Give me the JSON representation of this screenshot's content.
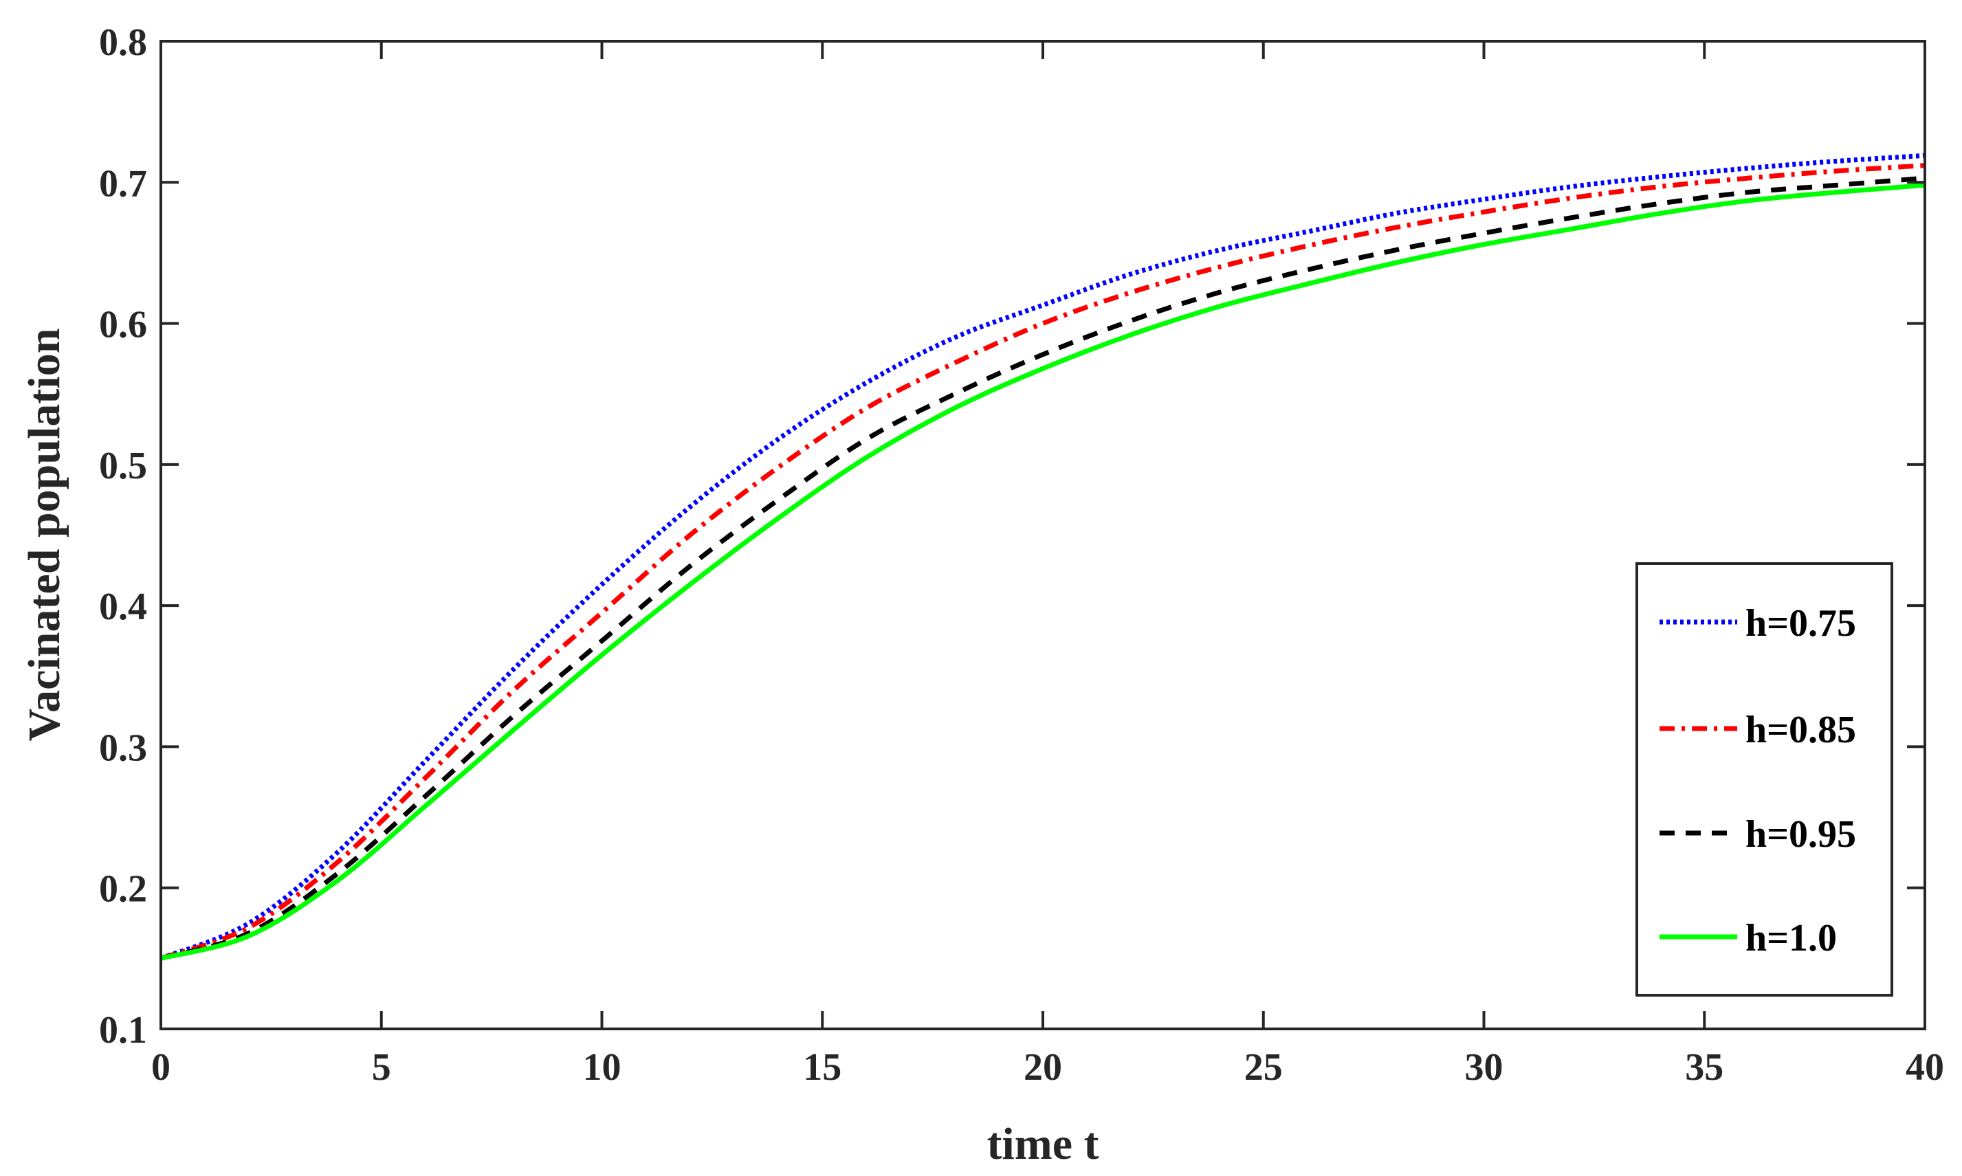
{
  "chart_data": {
    "type": "line",
    "title": "",
    "xlabel": "time t",
    "ylabel": "Vacinated population",
    "xlim": [
      0,
      40
    ],
    "ylim": [
      0.1,
      0.8
    ],
    "xticks": [
      0,
      5,
      10,
      15,
      20,
      25,
      30,
      35,
      40
    ],
    "yticks": [
      0.1,
      0.2,
      0.3,
      0.4,
      0.5,
      0.6,
      0.7,
      0.8
    ],
    "xtick_labels": [
      "0",
      "5",
      "10",
      "15",
      "20",
      "25",
      "30",
      "35",
      "40"
    ],
    "ytick_labels": [
      "0.1",
      "0.2",
      "0.3",
      "0.4",
      "0.5",
      "0.6",
      "0.7",
      "0.8"
    ],
    "grid": false,
    "legend_position": "right",
    "x": [
      0,
      2,
      4,
      6,
      8,
      10,
      12,
      14,
      16,
      18,
      20,
      22,
      24,
      26,
      28,
      30,
      32,
      34,
      36,
      38,
      40
    ],
    "series": [
      {
        "name": "h=0.75",
        "color": "#0000ff",
        "style": "dotted",
        "values": [
          0.15,
          0.175,
          0.225,
          0.29,
          0.355,
          0.415,
          0.47,
          0.518,
          0.558,
          0.59,
          0.613,
          0.635,
          0.652,
          0.665,
          0.678,
          0.688,
          0.697,
          0.704,
          0.71,
          0.715,
          0.719
        ]
      },
      {
        "name": "h=0.85",
        "color": "#ff0000",
        "style": "dashdot",
        "values": [
          0.15,
          0.172,
          0.218,
          0.278,
          0.34,
          0.395,
          0.45,
          0.498,
          0.54,
          0.572,
          0.6,
          0.622,
          0.64,
          0.655,
          0.668,
          0.679,
          0.689,
          0.697,
          0.703,
          0.708,
          0.712
        ]
      },
      {
        "name": "h=0.95",
        "color": "#000000",
        "style": "dashed",
        "values": [
          0.15,
          0.168,
          0.21,
          0.265,
          0.322,
          0.375,
          0.428,
          0.475,
          0.518,
          0.55,
          0.578,
          0.602,
          0.622,
          0.638,
          0.652,
          0.664,
          0.675,
          0.685,
          0.693,
          0.698,
          0.703
        ]
      },
      {
        "name": "h=1.0",
        "color": "#00ff00",
        "style": "solid",
        "values": [
          0.15,
          0.166,
          0.205,
          0.258,
          0.312,
          0.365,
          0.415,
          0.462,
          0.505,
          0.54,
          0.568,
          0.592,
          0.612,
          0.628,
          0.643,
          0.656,
          0.667,
          0.678,
          0.687,
          0.693,
          0.698
        ]
      }
    ]
  }
}
